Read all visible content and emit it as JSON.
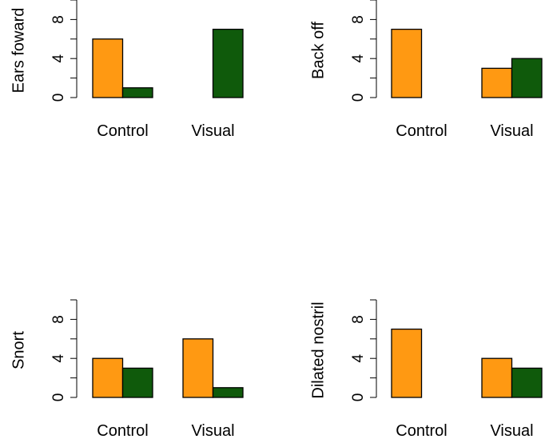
{
  "colors": {
    "series_a": "#FF9912",
    "series_b": "#0F5A0B",
    "axis": "#000000"
  },
  "chart_data": [
    {
      "type": "bar",
      "ylabel": "Ears foward",
      "categories": [
        "Control",
        "Visual"
      ],
      "series": [
        {
          "name": "orange",
          "values": [
            6,
            0
          ]
        },
        {
          "name": "green",
          "values": [
            1,
            7
          ]
        }
      ],
      "yticks": [
        0,
        4,
        8
      ],
      "ylim": [
        0,
        10
      ]
    },
    {
      "type": "bar",
      "ylabel": "Back off",
      "categories": [
        "Control",
        "Visual"
      ],
      "series": [
        {
          "name": "orange",
          "values": [
            7,
            3
          ]
        },
        {
          "name": "green",
          "values": [
            0,
            4
          ]
        }
      ],
      "yticks": [
        0,
        4,
        8
      ],
      "ylim": [
        0,
        10
      ]
    },
    {
      "type": "bar",
      "ylabel": "Snort",
      "categories": [
        "Control",
        "Visual"
      ],
      "series": [
        {
          "name": "orange",
          "values": [
            4,
            6
          ]
        },
        {
          "name": "green",
          "values": [
            3,
            1
          ]
        }
      ],
      "yticks": [
        0,
        4,
        8
      ],
      "ylim": [
        0,
        10
      ]
    },
    {
      "type": "bar",
      "ylabel": "Dilated nostril",
      "categories": [
        "Control",
        "Visual"
      ],
      "series": [
        {
          "name": "orange",
          "values": [
            7,
            4
          ]
        },
        {
          "name": "green",
          "values": [
            0,
            3
          ]
        }
      ],
      "yticks": [
        0,
        4,
        8
      ],
      "ylim": [
        0,
        10
      ]
    }
  ]
}
